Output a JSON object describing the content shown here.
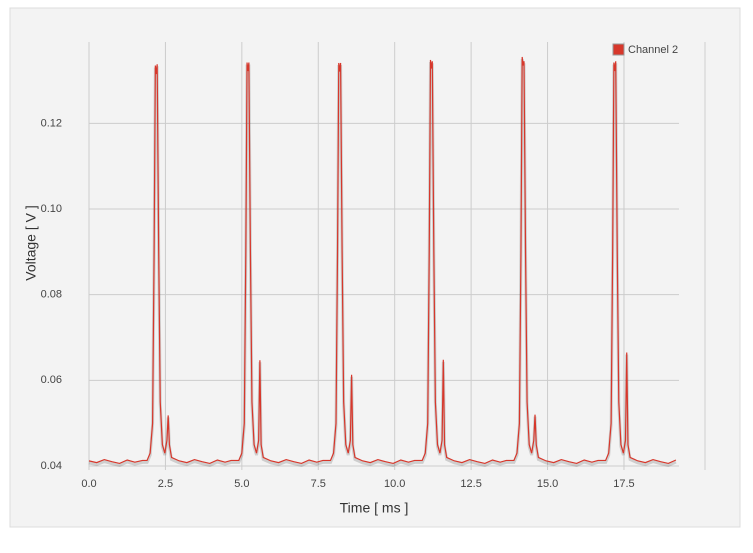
{
  "chart_data": {
    "type": "line",
    "x_label": "Time [ ms ]",
    "y_label": "Voltage [ V ]",
    "xlim": [
      0,
      19.3
    ],
    "ylim": [
      0.04,
      0.139
    ],
    "xticks": [
      {
        "value": 0,
        "label": "0.0"
      },
      2.5,
      {
        "value": 5,
        "label": "5.0"
      },
      7.5,
      {
        "value": 10,
        "label": "10.0"
      },
      12.5,
      {
        "value": 15,
        "label": "15.0"
      },
      17.5
    ],
    "yticks": [
      0.04,
      0.06,
      0.08,
      {
        "value": 0.1,
        "label": "0.10"
      },
      0.12
    ],
    "grid": true,
    "legend": "top-right",
    "x": [
      0,
      0.25,
      0.5,
      0.75,
      1,
      1.25,
      1.5,
      1.75,
      1.9,
      2,
      2.08,
      2.13,
      2.17,
      2.2,
      2.23,
      2.28,
      2.33,
      2.4,
      2.48,
      2.55,
      2.59,
      2.63,
      2.7,
      2.95,
      3.2,
      3.45,
      3.7,
      3.95,
      4.2,
      4.45,
      4.65,
      4.9,
      5,
      5.08,
      5.13,
      5.17,
      5.2,
      5.23,
      5.28,
      5.33,
      5.4,
      5.48,
      5.55,
      5.59,
      5.63,
      5.7,
      5.95,
      6.2,
      6.45,
      6.7,
      6.95,
      7.2,
      7.45,
      7.65,
      7.9,
      8,
      8.08,
      8.13,
      8.17,
      8.2,
      8.23,
      8.28,
      8.33,
      8.4,
      8.48,
      8.55,
      8.59,
      8.63,
      8.7,
      8.95,
      9.2,
      9.45,
      9.7,
      9.95,
      10.2,
      10.45,
      10.65,
      10.9,
      11,
      11.08,
      11.13,
      11.17,
      11.2,
      11.23,
      11.28,
      11.33,
      11.4,
      11.48,
      11.55,
      11.59,
      11.63,
      11.7,
      11.95,
      12.2,
      12.45,
      12.7,
      12.95,
      13.2,
      13.45,
      13.65,
      13.9,
      14,
      14.08,
      14.13,
      14.17,
      14.2,
      14.23,
      14.28,
      14.33,
      14.4,
      14.48,
      14.55,
      14.59,
      14.63,
      14.7,
      14.95,
      15.2,
      15.45,
      15.7,
      15.95,
      16.2,
      16.45,
      16.65,
      16.9,
      17,
      17.08,
      17.13,
      17.17,
      17.2,
      17.23,
      17.28,
      17.33,
      17.4,
      17.48,
      17.55,
      17.59,
      17.63,
      17.7,
      17.95,
      18.2,
      18.45,
      18.7,
      18.95,
      19.2
    ],
    "series": [
      {
        "name": "Channel 2",
        "color": "#d7372b",
        "values": [
          0.0412,
          0.0408,
          0.0415,
          0.041,
          0.0406,
          0.0414,
          0.0409,
          0.0413,
          0.0413,
          0.043,
          0.05,
          0.09,
          0.1335,
          0.1315,
          0.1338,
          0.09,
          0.055,
          0.045,
          0.043,
          0.046,
          0.0518,
          0.045,
          0.042,
          0.0412,
          0.0408,
          0.0415,
          0.041,
          0.0406,
          0.0414,
          0.0409,
          0.0413,
          0.0413,
          0.043,
          0.05,
          0.09,
          0.1342,
          0.1322,
          0.1342,
          0.09,
          0.055,
          0.045,
          0.043,
          0.046,
          0.0647,
          0.045,
          0.042,
          0.0412,
          0.0408,
          0.0415,
          0.041,
          0.0406,
          0.0414,
          0.0409,
          0.0413,
          0.0413,
          0.043,
          0.05,
          0.09,
          0.1341,
          0.1321,
          0.1341,
          0.09,
          0.055,
          0.045,
          0.043,
          0.046,
          0.0613,
          0.045,
          0.042,
          0.0412,
          0.0408,
          0.0415,
          0.041,
          0.0406,
          0.0414,
          0.0409,
          0.0413,
          0.0413,
          0.043,
          0.05,
          0.09,
          0.1348,
          0.1328,
          0.1345,
          0.09,
          0.055,
          0.045,
          0.043,
          0.046,
          0.0648,
          0.045,
          0.042,
          0.0412,
          0.0408,
          0.0415,
          0.041,
          0.0406,
          0.0414,
          0.0409,
          0.0413,
          0.0413,
          0.043,
          0.05,
          0.09,
          0.1355,
          0.1335,
          0.1345,
          0.09,
          0.055,
          0.045,
          0.043,
          0.046,
          0.052,
          0.045,
          0.042,
          0.0412,
          0.0408,
          0.0415,
          0.041,
          0.0406,
          0.0414,
          0.0409,
          0.0413,
          0.0413,
          0.043,
          0.05,
          0.09,
          0.1342,
          0.1322,
          0.1345,
          0.09,
          0.055,
          0.045,
          0.043,
          0.046,
          0.0665,
          0.045,
          0.042,
          0.0412,
          0.0408,
          0.0415,
          0.041,
          0.0406,
          0.0414
        ]
      }
    ]
  }
}
